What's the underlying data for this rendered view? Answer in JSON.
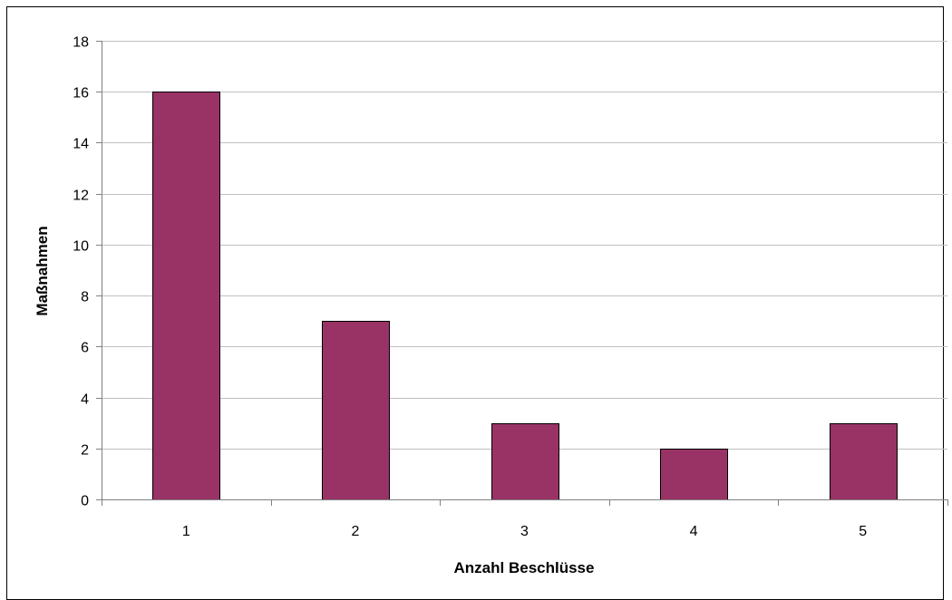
{
  "chart_data": {
    "type": "bar",
    "title": "",
    "xlabel": "Anzahl Beschlüsse",
    "ylabel": "Maßnahmen",
    "categories": [
      "1",
      "2",
      "3",
      "4",
      "5"
    ],
    "values": [
      16,
      7,
      3,
      2,
      3
    ],
    "ylim": [
      0,
      18
    ],
    "yticks": [
      0,
      2,
      4,
      6,
      8,
      10,
      12,
      14,
      16,
      18
    ],
    "grid": true,
    "legend": "none",
    "colors": {
      "bar": "#993366",
      "bar_edge": "#000000",
      "grid": "#c0c0c0",
      "axis": "#808080"
    }
  }
}
